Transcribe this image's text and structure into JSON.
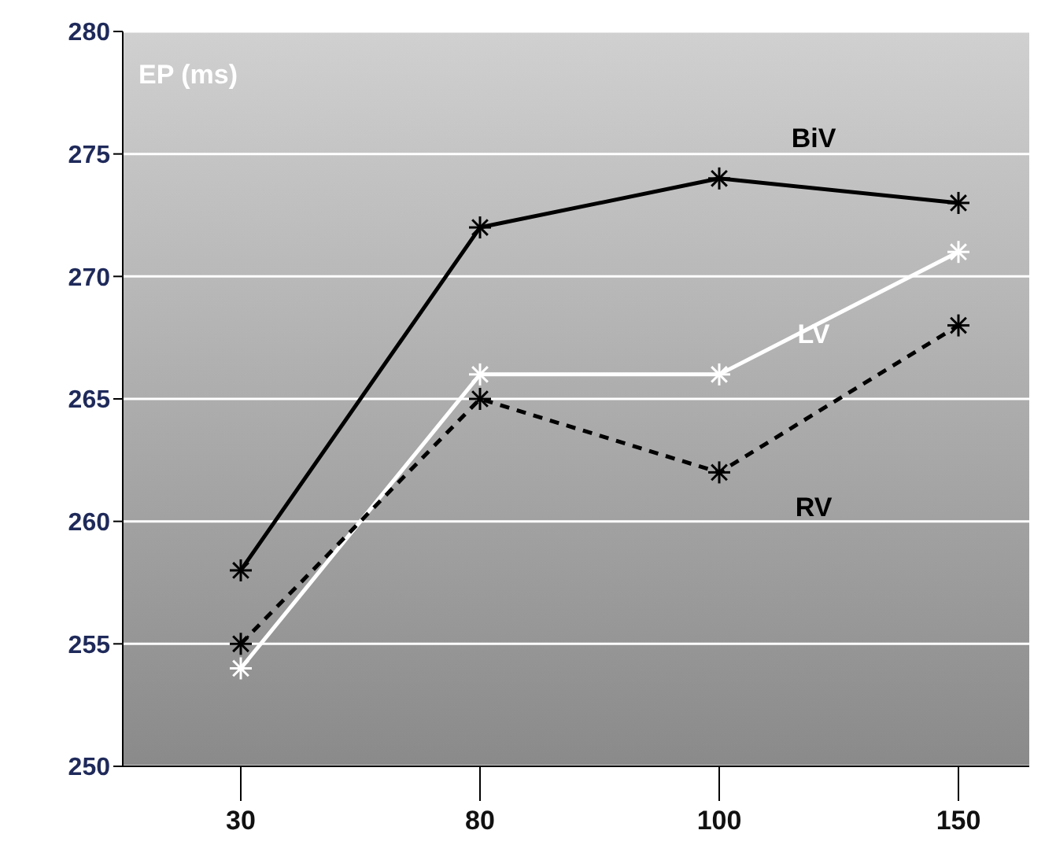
{
  "chart_data": {
    "type": "line",
    "ylabel": "EP (ms)",
    "categories": [
      "30",
      "80",
      "100",
      "150"
    ],
    "series": [
      {
        "name": "BiV",
        "color": "#000000",
        "values": [
          258,
          272,
          274,
          273
        ],
        "line_style": "solid"
      },
      {
        "name": "LV",
        "color": "#ffffff",
        "values": [
          254,
          266,
          266,
          271
        ],
        "line_style": "solid"
      },
      {
        "name": "RV",
        "color": "#000000",
        "values": [
          255,
          265,
          262,
          268
        ],
        "line_style": "dashed"
      }
    ],
    "ylim": [
      250,
      280
    ],
    "yticks": [
      250,
      255,
      260,
      265,
      270,
      275,
      280
    ],
    "grid": "y",
    "legend": false,
    "marker": "cross"
  }
}
